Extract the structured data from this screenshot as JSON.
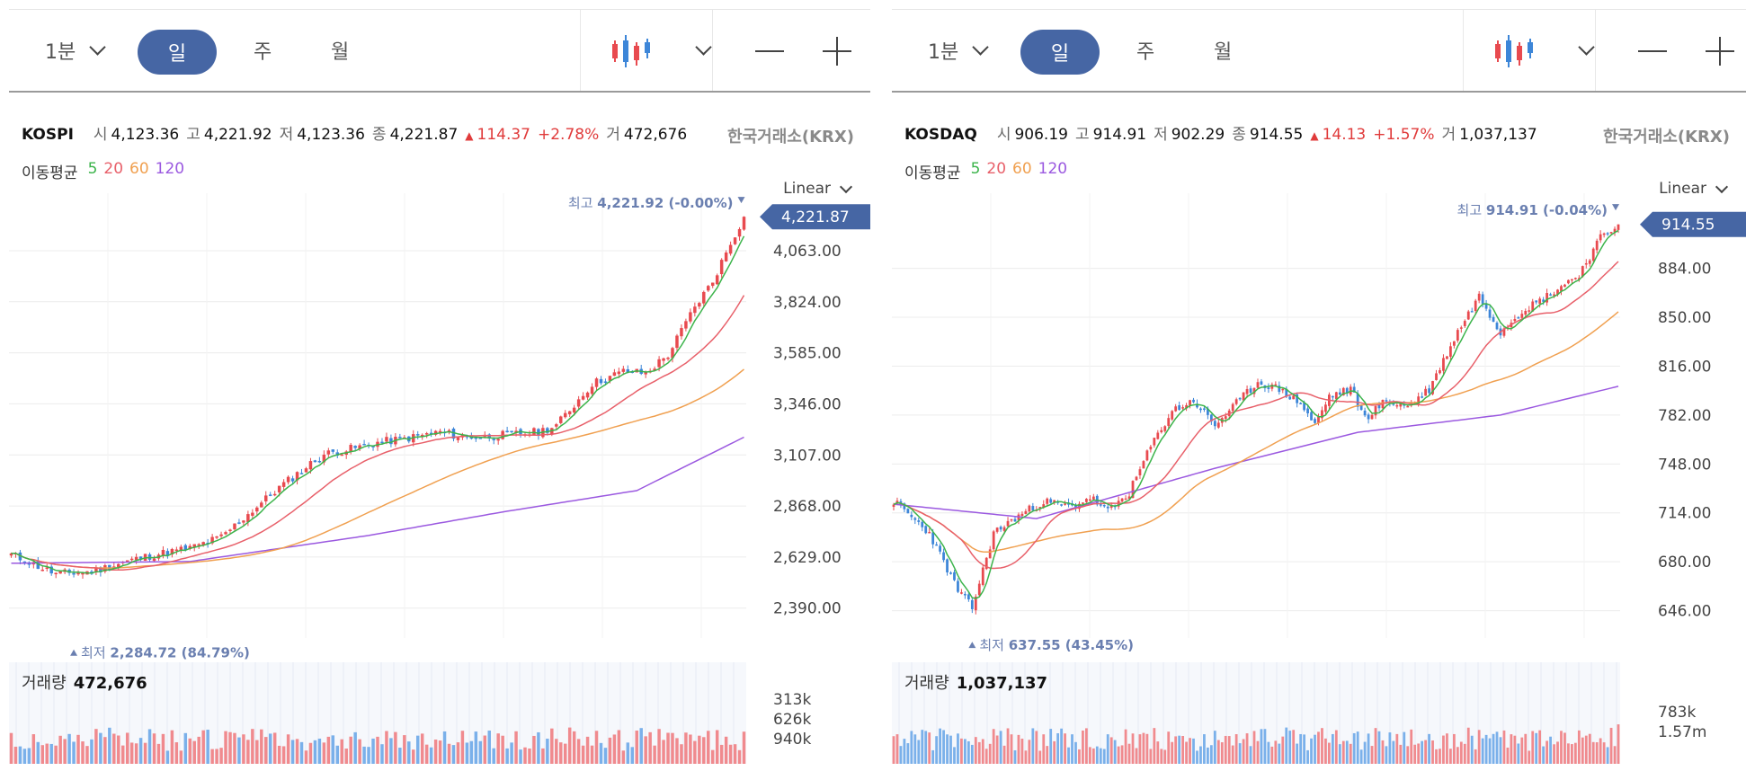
{
  "panels": [
    {
      "toolbar": {
        "period_1m": "1분",
        "period_day": "일",
        "period_week": "주",
        "period_month": "월"
      },
      "info": {
        "index": "KOSPI",
        "open_label": "시",
        "open": "4,123.36",
        "high_label": "고",
        "high": "4,221.92",
        "low_label": "저",
        "low": "4,123.36",
        "close_label": "종",
        "close": "4,221.87",
        "change": "114.37",
        "change_pct": "+2.78%",
        "volume_label": "거",
        "volume": "472,676",
        "exchange": "한국거래소(KRX)"
      },
      "ma": {
        "label": "이동평균",
        "p5": "5",
        "p20": "20",
        "p60": "60",
        "p120": "120"
      },
      "scale": "Linear",
      "volume_panel": {
        "label": "거래량",
        "value": "472,676"
      }
    },
    {
      "toolbar": {
        "period_1m": "1분",
        "period_day": "일",
        "period_week": "주",
        "period_month": "월"
      },
      "info": {
        "index": "KOSDAQ",
        "open_label": "시",
        "open": "906.19",
        "high_label": "고",
        "high": "914.91",
        "low_label": "저",
        "low": "902.29",
        "close_label": "종",
        "close": "914.55",
        "change": "14.13",
        "change_pct": "+1.57%",
        "volume_label": "거",
        "volume": "1,037,137",
        "exchange": "한국거래소(KRX)"
      },
      "ma": {
        "label": "이동평균",
        "p5": "5",
        "p20": "20",
        "p60": "60",
        "p120": "120"
      },
      "scale": "Linear",
      "volume_panel": {
        "label": "거래량",
        "value": "1,037,137"
      }
    }
  ],
  "colors": {
    "up": "#e84a4f",
    "down": "#3d86d8",
    "ma5": "#3cb44b",
    "ma20": "#e8606a",
    "ma60": "#f0a050",
    "ma120": "#9b59e0",
    "badge": "#4666a4",
    "annot": "#6a7fb0"
  },
  "chart_data": [
    {
      "type": "candlestick",
      "title": "KOSPI",
      "ylim": [
        2250,
        4290
      ],
      "y_ticks": [
        "4,063.00",
        "3,824.00",
        "3,585.00",
        "3,346.00",
        "3,107.00",
        "2,868.00",
        "2,629.00",
        "2,390.00"
      ],
      "y_tick_values": [
        4063,
        3824,
        3585,
        3346,
        3107,
        2868,
        2629,
        2390
      ],
      "last_price": "4,221.87",
      "last_value": 4221.87,
      "high_annotation": {
        "label": "최고",
        "value": "4,221.92 (-0.00%)",
        "y": 4221.92
      },
      "low_annotation": {
        "label": "최저",
        "value": "2,284.72 (84.79%)",
        "y": 2284.72
      },
      "anchors": [
        [
          0,
          2640
        ],
        [
          10,
          2550
        ],
        [
          18,
          2560
        ],
        [
          25,
          2605
        ],
        [
          32,
          2640
        ],
        [
          40,
          2670
        ],
        [
          47,
          2722
        ],
        [
          53,
          2830
        ],
        [
          60,
          2955
        ],
        [
          66,
          3050
        ],
        [
          70,
          3110
        ],
        [
          76,
          3135
        ],
        [
          82,
          3165
        ],
        [
          90,
          3190
        ],
        [
          96,
          3215
        ],
        [
          100,
          3195
        ],
        [
          105,
          3190
        ],
        [
          111,
          3202
        ],
        [
          118,
          3215
        ],
        [
          122,
          3245
        ],
        [
          130,
          3440
        ],
        [
          137,
          3498
        ],
        [
          142,
          3490
        ],
        [
          147,
          3575
        ],
        [
          153,
          3800
        ],
        [
          157,
          3920
        ],
        [
          161,
          4100
        ],
        [
          164,
          4221.87
        ]
      ],
      "ma120_anchors": [
        [
          0,
          2600
        ],
        [
          40,
          2608
        ],
        [
          80,
          2730
        ],
        [
          110,
          2840
        ],
        [
          140,
          2940
        ],
        [
          164,
          3190
        ]
      ],
      "seed": 11,
      "volume_ticks": [
        "940k",
        "626k",
        "313k"
      ],
      "volume_max": 1000000
    },
    {
      "type": "candlestick",
      "title": "KOSDAQ",
      "ylim": [
        627,
        930
      ],
      "y_ticks": [
        "884.00",
        "850.00",
        "816.00",
        "782.00",
        "748.00",
        "714.00",
        "680.00",
        "646.00"
      ],
      "y_tick_values": [
        884,
        850,
        816,
        782,
        748,
        714,
        680,
        646
      ],
      "last_price": "914.55",
      "last_value": 914.55,
      "high_annotation": {
        "label": "최고",
        "value": "914.91 (-0.04%)",
        "y": 914.91
      },
      "low_annotation": {
        "label": "최저",
        "value": "637.55 (43.45%)",
        "y": 637.55
      },
      "anchors": [
        [
          0,
          722
        ],
        [
          10,
          700
        ],
        [
          18,
          660
        ],
        [
          22,
          648
        ],
        [
          28,
          700
        ],
        [
          35,
          712
        ],
        [
          42,
          722
        ],
        [
          50,
          718
        ],
        [
          55,
          725
        ],
        [
          60,
          715
        ],
        [
          66,
          728
        ],
        [
          72,
          760
        ],
        [
          78,
          785
        ],
        [
          84,
          792
        ],
        [
          90,
          775
        ],
        [
          96,
          790
        ],
        [
          102,
          805
        ],
        [
          108,
          800
        ],
        [
          114,
          790
        ],
        [
          118,
          775
        ],
        [
          122,
          795
        ],
        [
          128,
          800
        ],
        [
          132,
          780
        ],
        [
          138,
          792
        ],
        [
          144,
          788
        ],
        [
          150,
          800
        ],
        [
          158,
          840
        ],
        [
          164,
          865
        ],
        [
          170,
          840
        ],
        [
          176,
          855
        ],
        [
          180,
          860
        ],
        [
          186,
          870
        ],
        [
          192,
          880
        ],
        [
          198,
          905
        ],
        [
          203,
          914.55
        ]
      ],
      "ma120_anchors": [
        [
          0,
          720
        ],
        [
          40,
          710
        ],
        [
          90,
          745
        ],
        [
          130,
          770
        ],
        [
          170,
          782
        ],
        [
          203,
          802
        ]
      ],
      "seed": 23,
      "volume_ticks": [
        "1.57m",
        "783k"
      ],
      "volume_max": 1800000
    }
  ]
}
